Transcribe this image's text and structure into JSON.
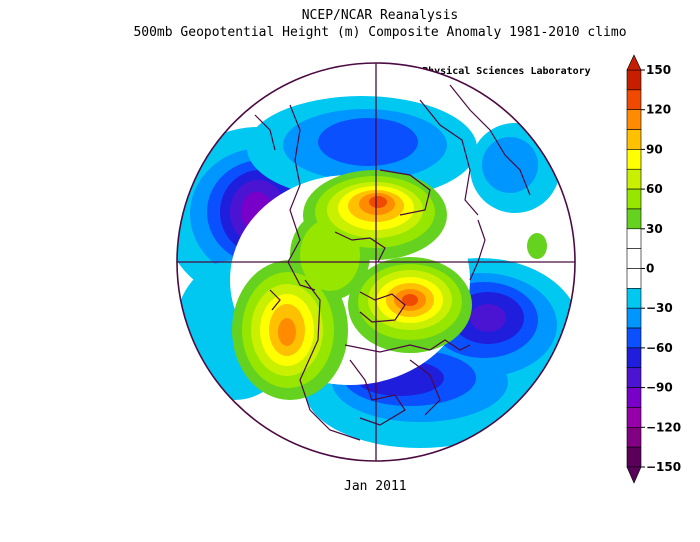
{
  "header": {
    "title_line1": "NCEP/NCAR Reanalysis",
    "title_line2": "500mb Geopotential Height (m) Composite Anomaly 1981-2010 climo",
    "credit": "NOAA Physical Sciences Laboratory"
  },
  "footer": {
    "period": "Jan 2011"
  },
  "colorbar": {
    "min": -150,
    "max": 150,
    "ticks": [
      150,
      120,
      90,
      60,
      30,
      0,
      -30,
      -60,
      -90,
      -120,
      -150
    ],
    "bins": [
      {
        "from": 135,
        "to": 150,
        "color": "#c81e00"
      },
      {
        "from": 120,
        "to": 135,
        "color": "#f04a00"
      },
      {
        "from": 105,
        "to": 120,
        "color": "#ff8c00"
      },
      {
        "from": 90,
        "to": 105,
        "color": "#ffc000"
      },
      {
        "from": 75,
        "to": 90,
        "color": "#ffff00"
      },
      {
        "from": 60,
        "to": 75,
        "color": "#c8f000"
      },
      {
        "from": 45,
        "to": 60,
        "color": "#96e600"
      },
      {
        "from": 30,
        "to": 45,
        "color": "#64d21e"
      },
      {
        "from": 15,
        "to": 30,
        "color": "#ffffff"
      },
      {
        "from": 0,
        "to": 15,
        "color": "#ffffff"
      },
      {
        "from": -15,
        "to": 0,
        "color": "#ffffff"
      },
      {
        "from": -30,
        "to": -15,
        "color": "#00c8f0"
      },
      {
        "from": -45,
        "to": -30,
        "color": "#0096ff"
      },
      {
        "from": -60,
        "to": -45,
        "color": "#0a50ff"
      },
      {
        "from": -75,
        "to": -60,
        "color": "#1e1edc"
      },
      {
        "from": -90,
        "to": -75,
        "color": "#4b14d2"
      },
      {
        "from": -105,
        "to": -90,
        "color": "#7800c8"
      },
      {
        "from": -120,
        "to": -105,
        "color": "#9600aa"
      },
      {
        "from": -135,
        "to": -120,
        "color": "#820082"
      },
      {
        "from": -150,
        "to": -135,
        "color": "#5a005a"
      }
    ],
    "over_color": "#c81e00",
    "under_color": "#5a005a"
  },
  "map": {
    "projection": "north polar stereographic",
    "boundary_color": "#4b0a41",
    "coastline_color": "#4b0a41"
  }
}
